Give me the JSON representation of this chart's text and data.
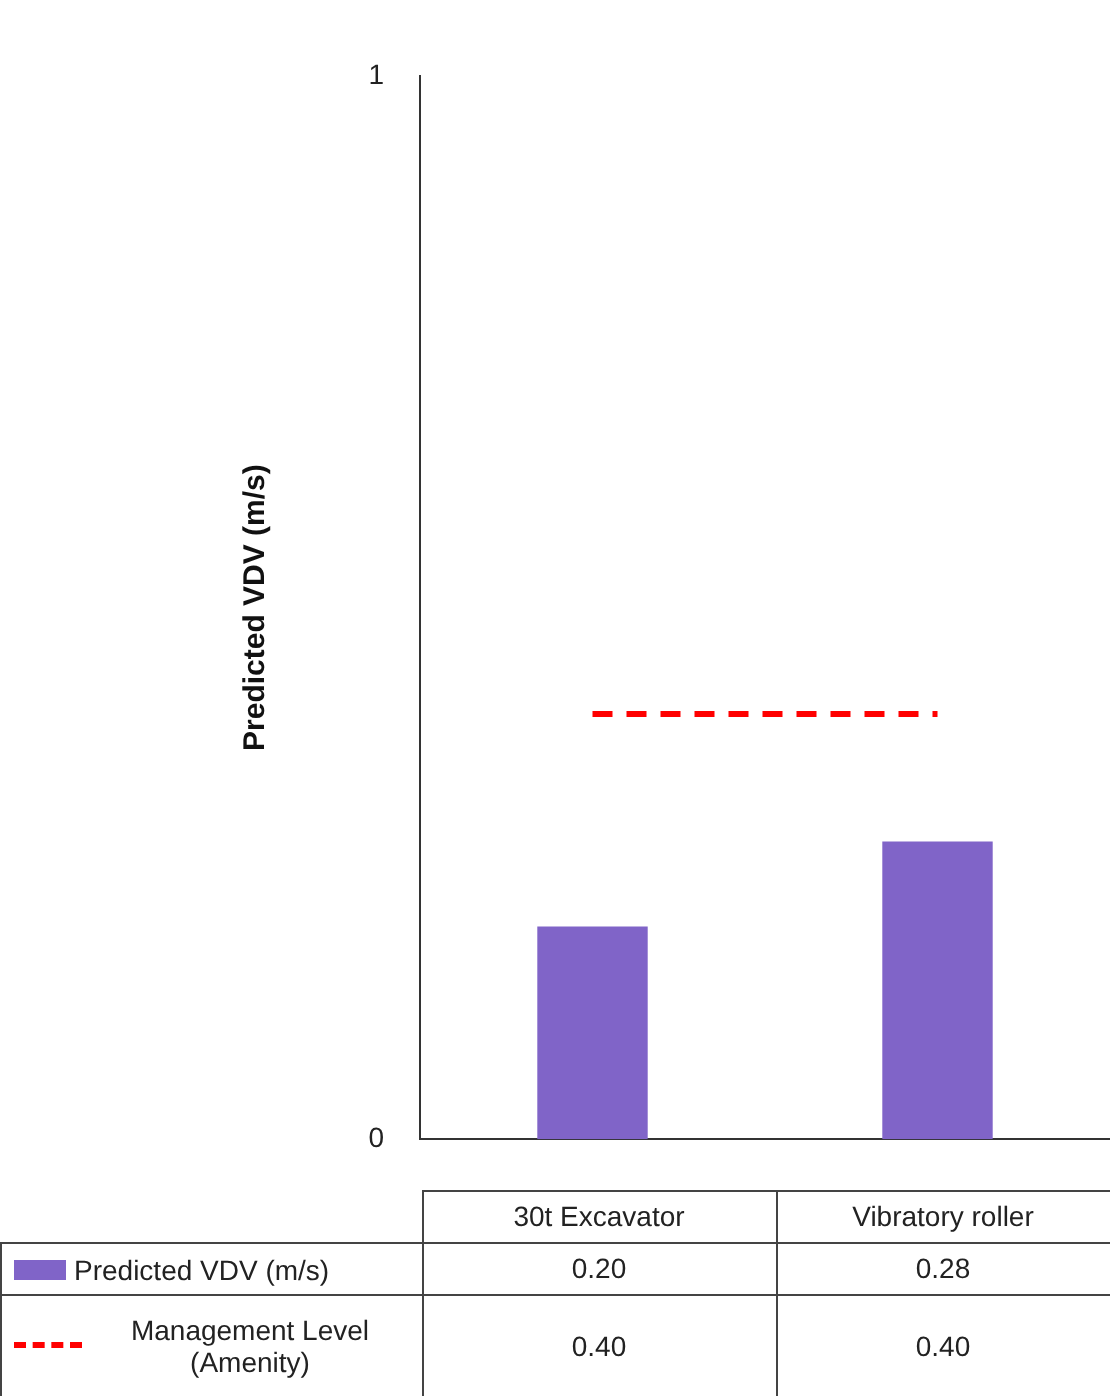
{
  "chart_data": {
    "type": "bar",
    "ylabel": "Predicted VDV (m/s)",
    "categories": [
      "30t Excavator",
      "Vibratory roller"
    ],
    "series": [
      {
        "name": "Predicted VDV (m/s)",
        "color": "#8064c8",
        "values": [
          0.2,
          0.28
        ],
        "value_labels": [
          "0.20",
          "0.28"
        ]
      },
      {
        "name": "Management Level (Amenity)",
        "type": "line",
        "color": "#ff0000",
        "line_style": "dashed",
        "values": [
          0.4,
          0.4
        ],
        "value_labels": [
          "0.40",
          "0.40"
        ]
      }
    ],
    "ylim": [
      0,
      1
    ],
    "yticks": [
      0,
      1
    ],
    "legend": "bottom"
  }
}
